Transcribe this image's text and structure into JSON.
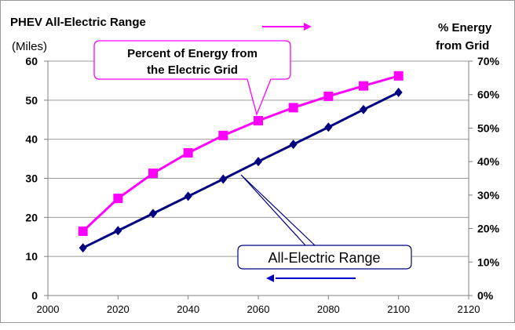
{
  "chart_data": {
    "type": "line",
    "title_left": "PHEV All-Electric Range",
    "units_left": "(Miles)",
    "title_right_line1": "% Energy",
    "title_right_line2": "from Grid",
    "x": [
      2010,
      2020,
      2030,
      2040,
      2050,
      2060,
      2070,
      2080,
      2090,
      2100
    ],
    "x_ticks": [
      "2000",
      "2020",
      "2040",
      "2060",
      "2080",
      "2100",
      "2120"
    ],
    "xlim": [
      2000,
      2120
    ],
    "y_left_ticks": [
      "0",
      "10",
      "20",
      "30",
      "40",
      "50",
      "60"
    ],
    "ylim_left": [
      0,
      60
    ],
    "y_right_ticks": [
      "0%",
      "10%",
      "20%",
      "30%",
      "40%",
      "50%",
      "60%",
      "70%"
    ],
    "ylim_right": [
      0,
      70
    ],
    "grid": true,
    "series": [
      {
        "name": "Percent of Energy from the Electric Grid",
        "axis": "right",
        "color": "#ff00ff",
        "marker": "square",
        "values": [
          19.2,
          29.0,
          36.5,
          42.6,
          47.8,
          52.2,
          56.1,
          59.5,
          62.6,
          65.6
        ]
      },
      {
        "name": "All-Electric Range",
        "axis": "left",
        "color": "#000080",
        "marker": "diamond",
        "values": [
          12.2,
          16.6,
          21.0,
          25.4,
          29.8,
          34.3,
          38.7,
          43.1,
          47.6,
          52.0
        ]
      }
    ],
    "annotations": {
      "grid_callout_line1": "Percent of Energy from",
      "grid_callout_line2": "the Electric Grid",
      "range_callout": "All-Electric Range",
      "grid_arrow_color": "#ff00ff",
      "range_arrow_color": "#0000cc"
    }
  }
}
